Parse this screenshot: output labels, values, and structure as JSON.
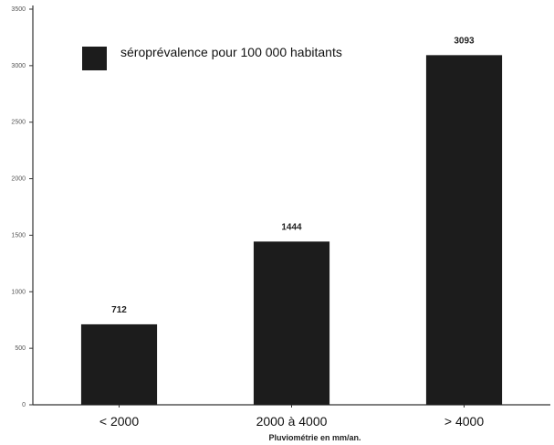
{
  "chart_data": {
    "type": "bar",
    "categories": [
      "< 2000",
      "2000 à 4000",
      "> 4000"
    ],
    "values": [
      712,
      1444,
      3093
    ],
    "series_name": "séroprévalence pour 100 000 habitants",
    "xlabel": "Pluviométrie en mm/an.",
    "ylabel": "",
    "ylim": [
      0,
      3500
    ],
    "yticks": [
      0,
      500,
      1000,
      1500,
      2000,
      2500,
      3000,
      3500
    ],
    "grid": false,
    "legend_position": "top-left",
    "bar_color": "#1c1c1c"
  }
}
